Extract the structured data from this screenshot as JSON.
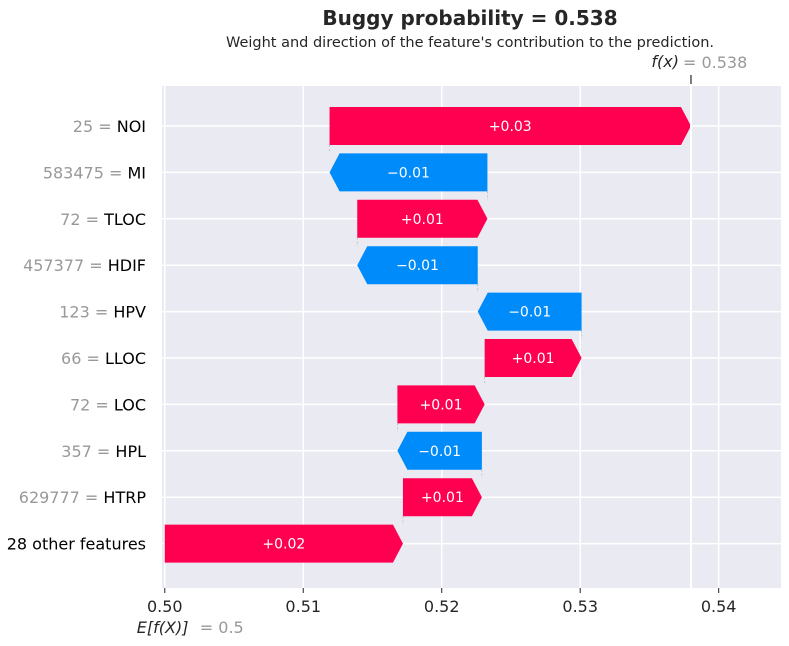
{
  "colors": {
    "positive": "#ff0051",
    "negative": "#008bfb",
    "background": "#eaeaf2",
    "grid": "#ffffff",
    "connector": "#bbbbbb",
    "muted_text": "#999999"
  },
  "chart_data": {
    "type": "waterfall",
    "title": "Buggy probability = 0.538",
    "subtitle": "Weight and direction of the feature's contribution to the prediction.",
    "base_value": 0.5,
    "base_label": "E[f(X)]",
    "base_value_text": "= 0.5",
    "output_value": 0.538,
    "output_label": "f(x)",
    "output_value_text": "= 0.538",
    "xlim": [
      0.4998,
      0.5445
    ],
    "x_ticks": [
      0.5,
      0.51,
      0.52,
      0.53,
      0.54
    ],
    "x_tick_labels": [
      "0.50",
      "0.51",
      "0.52",
      "0.53",
      "0.54"
    ],
    "grid": true,
    "features": [
      {
        "value": "25",
        "name": "NOI",
        "contribution_label": "+0.03",
        "start": 0.5119,
        "end": 0.538
      },
      {
        "value": "583475",
        "name": "MI",
        "contribution_label": "−0.01",
        "start": 0.5233,
        "end": 0.5119
      },
      {
        "value": "72",
        "name": "TLOC",
        "contribution_label": "+0.01",
        "start": 0.5139,
        "end": 0.5233
      },
      {
        "value": "457377",
        "name": "HDIF",
        "contribution_label": "−0.01",
        "start": 0.5226,
        "end": 0.5139
      },
      {
        "value": "123",
        "name": "HPV",
        "contribution_label": "−0.01",
        "start": 0.5301,
        "end": 0.5226
      },
      {
        "value": "66",
        "name": "LLOC",
        "contribution_label": "+0.01",
        "start": 0.5231,
        "end": 0.5301
      },
      {
        "value": "72",
        "name": "LOC",
        "contribution_label": "+0.01",
        "start": 0.5168,
        "end": 0.5231
      },
      {
        "value": "357",
        "name": "HPL",
        "contribution_label": "−0.01",
        "start": 0.5229,
        "end": 0.5168
      },
      {
        "value": "629777",
        "name": "HTRP",
        "contribution_label": "+0.01",
        "start": 0.5172,
        "end": 0.5229
      },
      {
        "value": "",
        "name": "28 other features",
        "contribution_label": "+0.02",
        "start": 0.5,
        "end": 0.5172
      }
    ]
  }
}
